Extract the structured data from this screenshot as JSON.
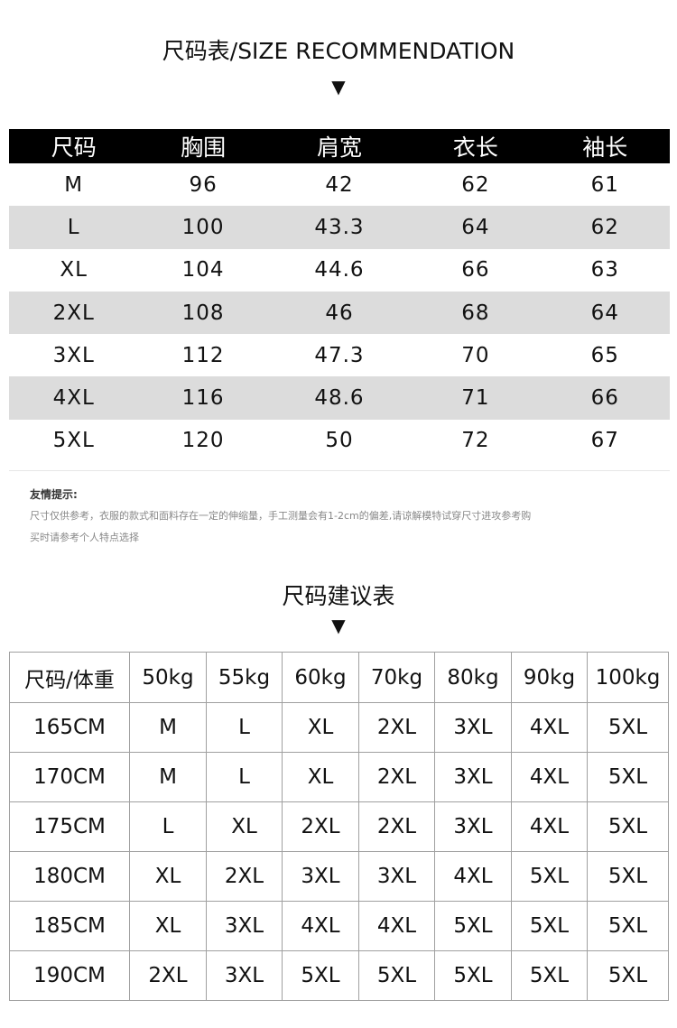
{
  "size_chart": {
    "title": "尺码表/SIZE RECOMMENDATION",
    "arrow": "▼",
    "headers": [
      "尺码",
      "胸围",
      "肩宽",
      "衣长",
      "袖长"
    ],
    "rows": [
      [
        "M",
        "96",
        "42",
        "62",
        "61"
      ],
      [
        "L",
        "100",
        "43.3",
        "64",
        "62"
      ],
      [
        "XL",
        "104",
        "44.6",
        "66",
        "63"
      ],
      [
        "2XL",
        "108",
        "46",
        "68",
        "64"
      ],
      [
        "3XL",
        "112",
        "47.3",
        "70",
        "65"
      ],
      [
        "4XL",
        "116",
        "48.6",
        "71",
        "66"
      ],
      [
        "5XL",
        "120",
        "50",
        "72",
        "67"
      ]
    ],
    "row_highlight_color": "#dcdcdc"
  },
  "notice": {
    "heading": "友情提示:",
    "line1": "尺寸仅供参考，衣服的款式和面料存在一定的伸缩量，手工测量会有1-2cm的偏差,请谅解模特试穿尺寸进攻参考购",
    "line2": "买时请参考个人特点选择"
  },
  "recommendation": {
    "title": "尺码建议表",
    "arrow": "▼",
    "headers": [
      "尺码/体重",
      "50kg",
      "55kg",
      "60kg",
      "70kg",
      "80kg",
      "90kg",
      "100kg"
    ],
    "rows": [
      [
        "165CM",
        "M",
        "L",
        "XL",
        "2XL",
        "3XL",
        "4XL",
        "5XL"
      ],
      [
        "170CM",
        "M",
        "L",
        "XL",
        "2XL",
        "3XL",
        "4XL",
        "5XL"
      ],
      [
        "175CM",
        "L",
        "XL",
        "2XL",
        "2XL",
        "3XL",
        "4XL",
        "5XL"
      ],
      [
        "180CM",
        "XL",
        "2XL",
        "3XL",
        "3XL",
        "4XL",
        "5XL",
        "5XL"
      ],
      [
        "185CM",
        "XL",
        "3XL",
        "4XL",
        "4XL",
        "5XL",
        "5XL",
        "5XL"
      ],
      [
        "190CM",
        "2XL",
        "3XL",
        "5XL",
        "5XL",
        "5XL",
        "5XL",
        "5XL"
      ]
    ]
  }
}
